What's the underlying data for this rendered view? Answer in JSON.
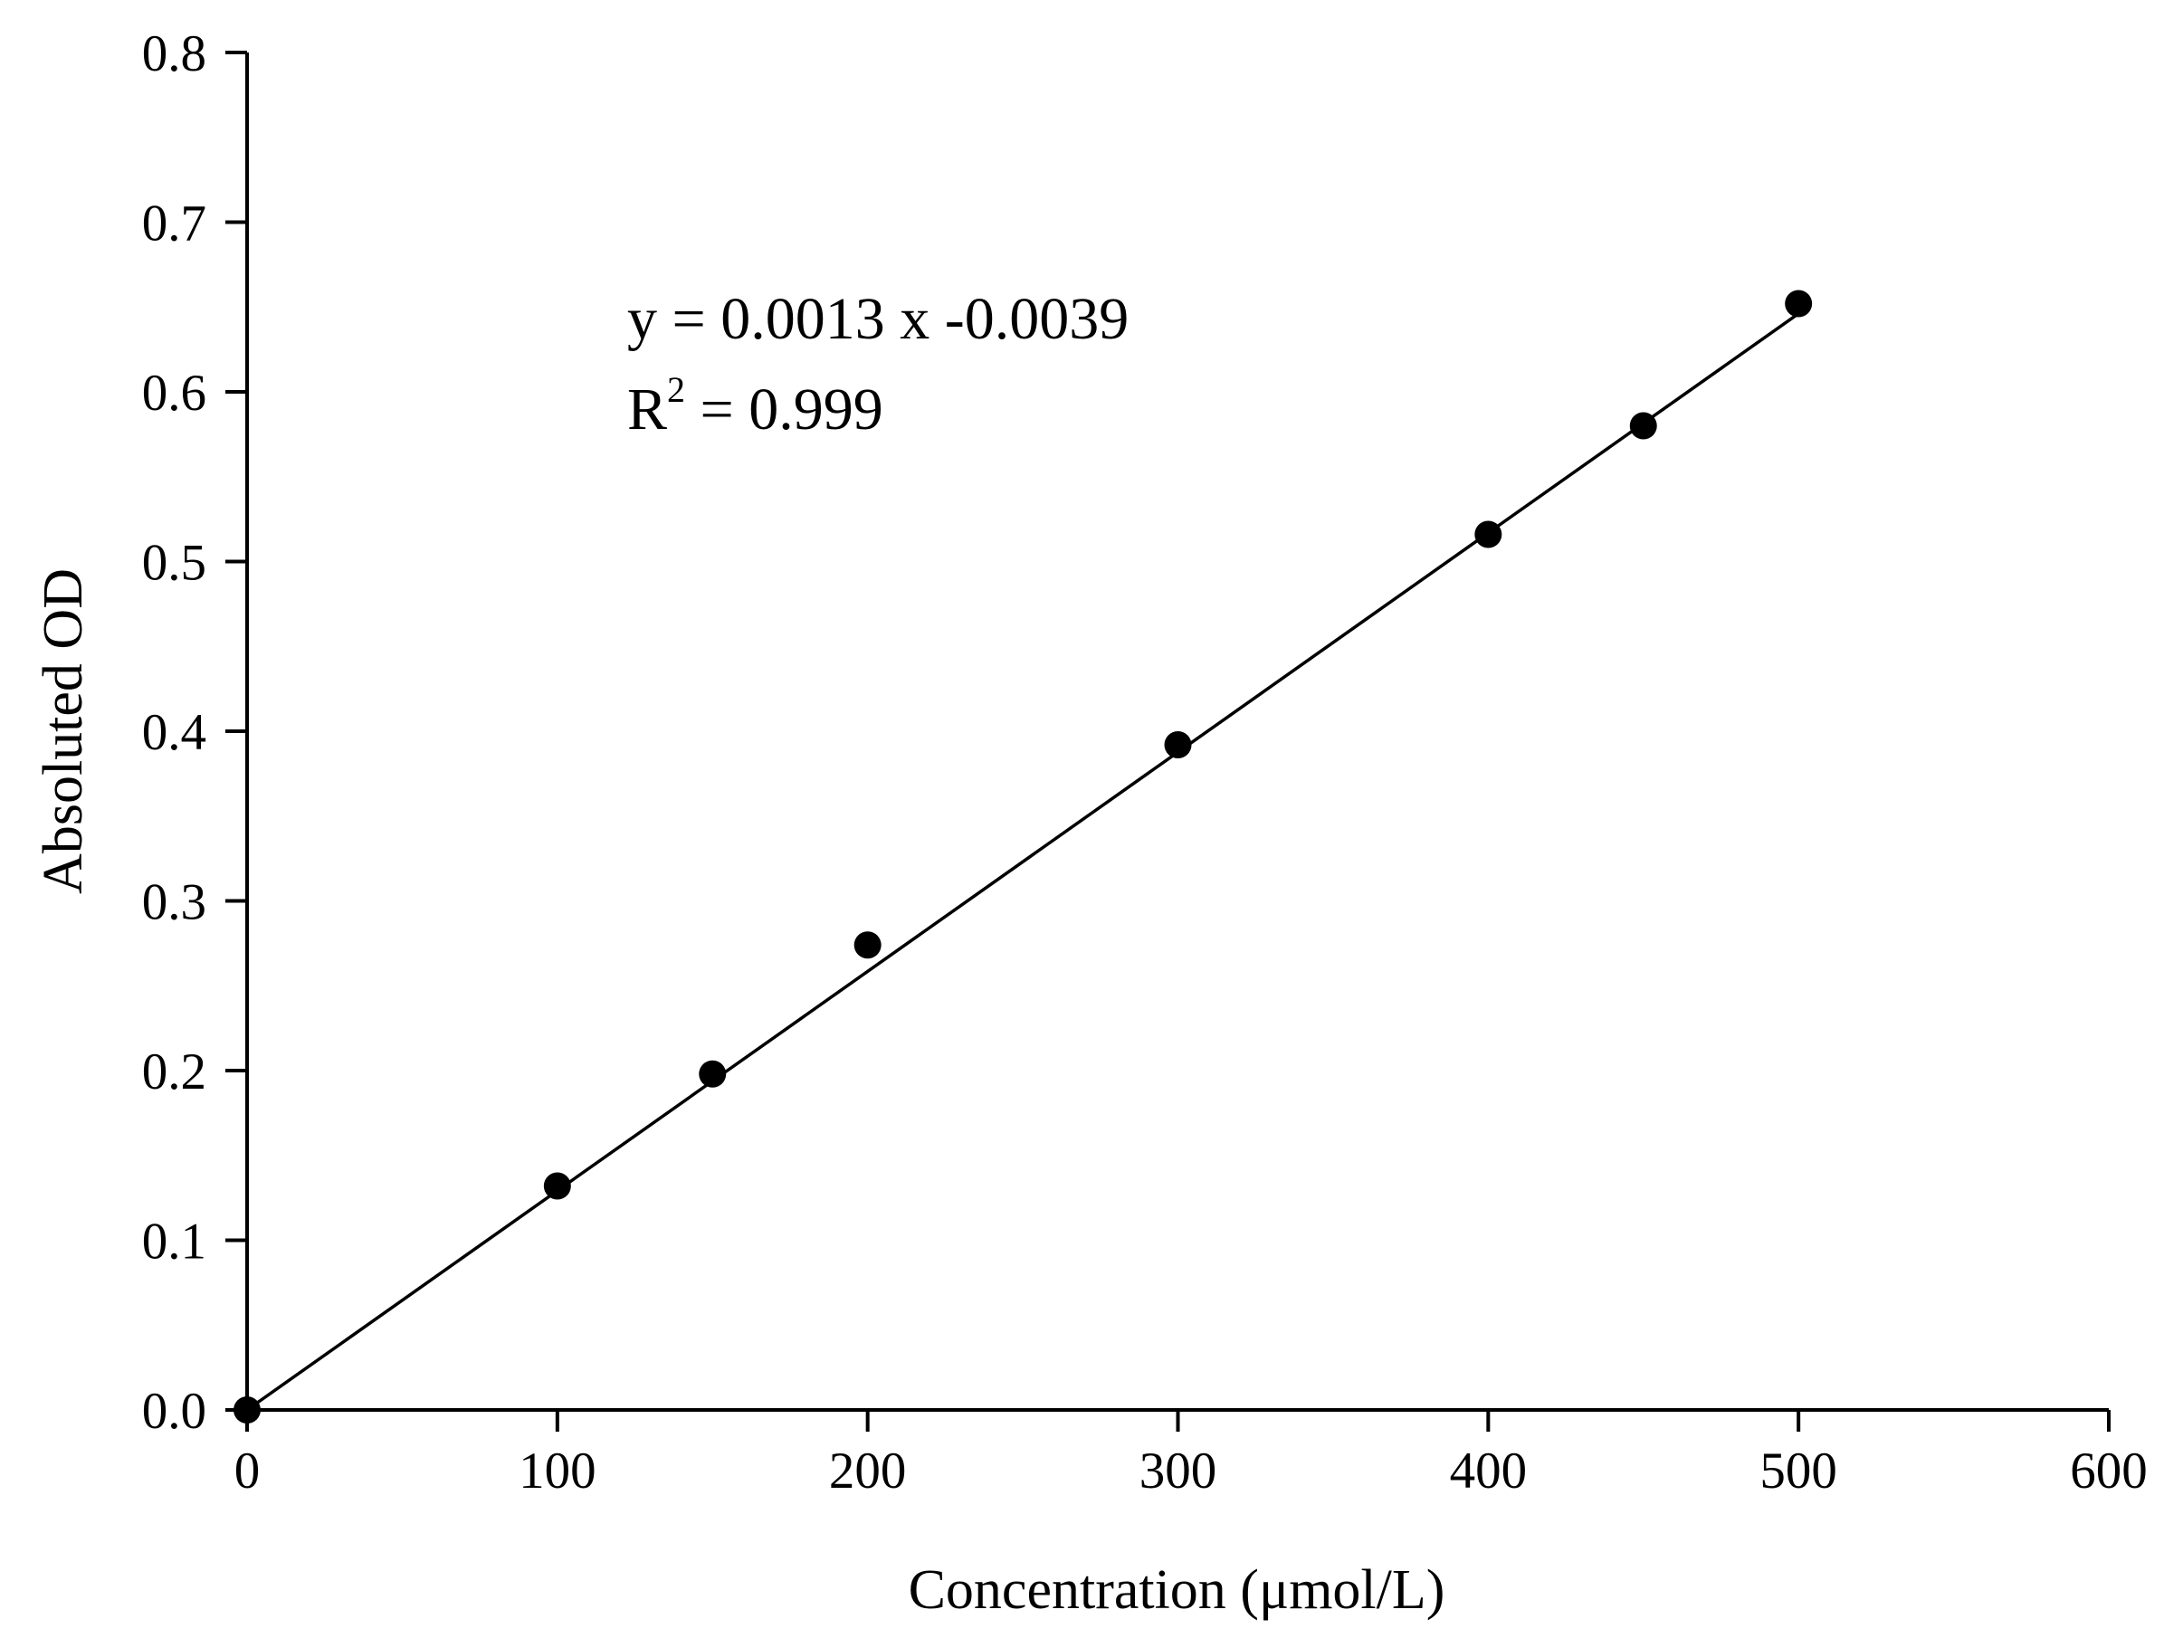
{
  "chart_data": {
    "type": "scatter",
    "xlabel": "Concentration (μmol/L)",
    "ylabel": "Absoluted OD",
    "xlim": [
      0,
      600
    ],
    "ylim": [
      0,
      0.8
    ],
    "xticks": [
      "0",
      "100",
      "200",
      "300",
      "400",
      "500",
      "600"
    ],
    "yticks": [
      "0.0",
      "0.1",
      "0.2",
      "0.3",
      "0.4",
      "0.5",
      "0.6",
      "0.7",
      "0.8"
    ],
    "grid": false,
    "series": [
      {
        "x": [
          0,
          100,
          150,
          200,
          300,
          400,
          450,
          500
        ],
        "y": [
          0.0,
          0.132,
          0.198,
          0.274,
          0.392,
          0.516,
          0.58,
          0.652
        ],
        "marker": "filled-circle",
        "color": "#000000"
      }
    ],
    "fit_line": {
      "slope": 0.0013,
      "intercept": -0.0039,
      "x_range": [
        0,
        500
      ]
    },
    "annotations": {
      "equation": "y = 0.0013 x -0.0039",
      "r2_base": "R",
      "r2_sup": "2",
      "r2_rest": " = 0.999"
    }
  }
}
